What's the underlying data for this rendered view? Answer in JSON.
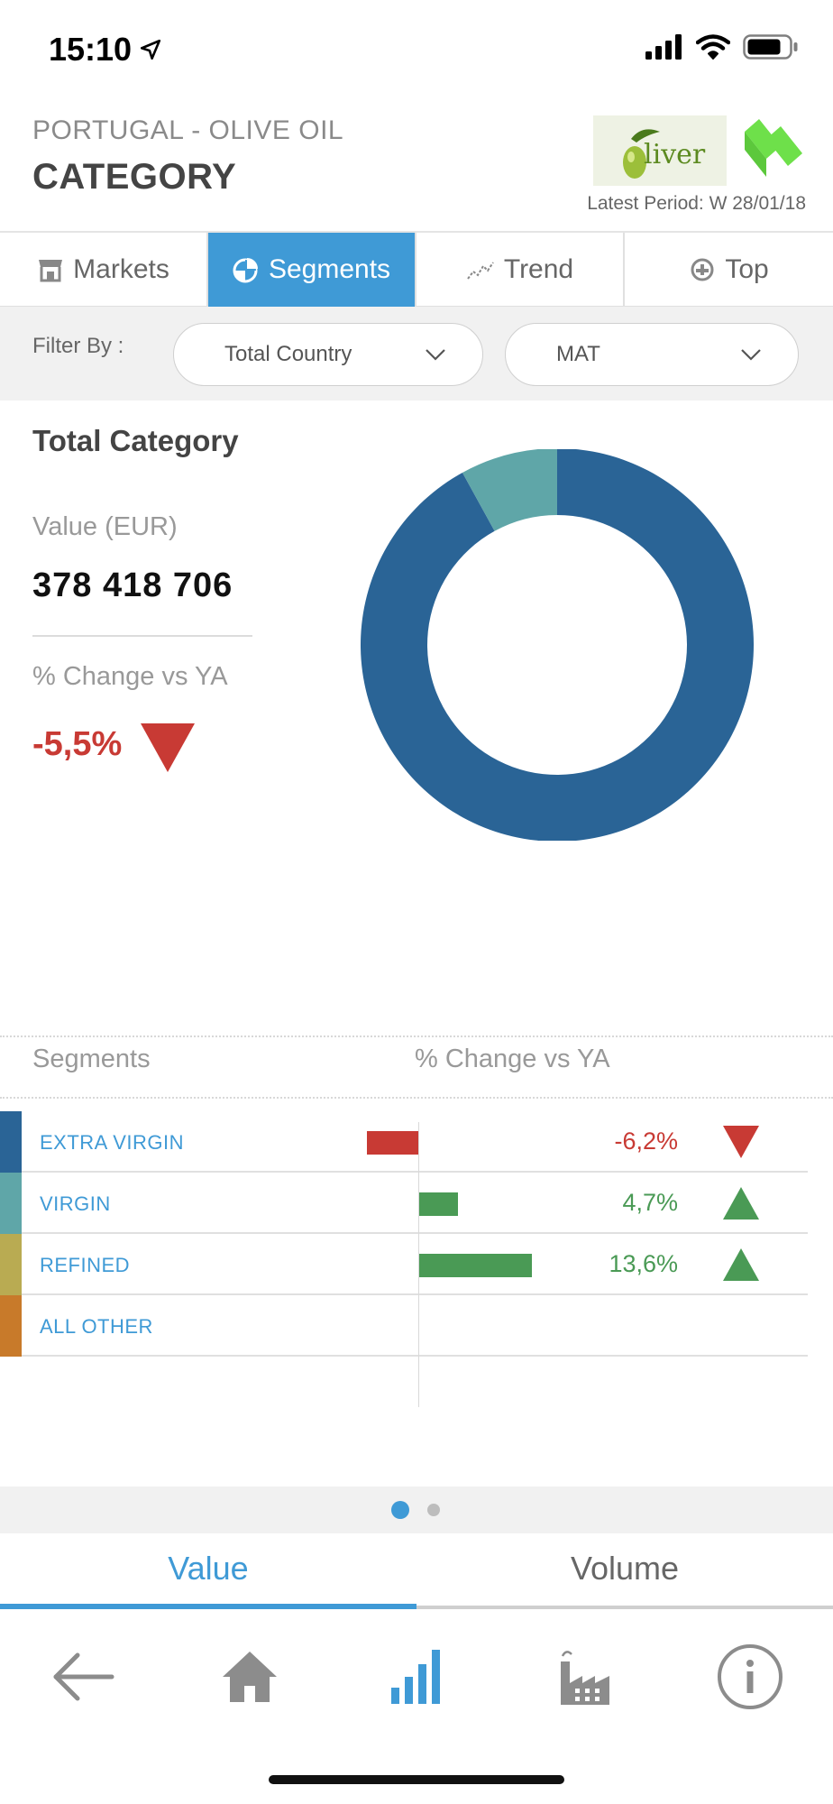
{
  "status_bar": {
    "time": "15:10"
  },
  "header": {
    "country_label": "PORTUGAL - OLIVE OIL",
    "title": "CATEGORY",
    "logo_text": "liver",
    "period_label": "Latest Period: W 28/01/18"
  },
  "tabs": [
    {
      "label": "Markets",
      "icon": "store-icon",
      "active": false
    },
    {
      "label": "Segments",
      "icon": "pie-chart-icon",
      "active": true
    },
    {
      "label": "Trend",
      "icon": "trend-icon",
      "active": false
    },
    {
      "label": "Top",
      "icon": "top-icon",
      "active": false
    }
  ],
  "filter": {
    "label": "Filter By :",
    "geography": "Total Country",
    "period": "MAT"
  },
  "summary": {
    "title": "Total Category",
    "value_label": "Value (EUR)",
    "value": "378 418 706",
    "change_label": "% Change vs YA",
    "change_value": "-5,5%"
  },
  "colors": {
    "extra_virgin": "#2a6496",
    "virgin": "#5fa6a8",
    "refined": "#b9ab52",
    "all_other": "#c87a2a",
    "negative": "#c83a34",
    "positive": "#4a9a55",
    "accent": "#3f9ad6"
  },
  "chart_data": [
    {
      "type": "pie",
      "labels": [
        "EXTRA VIRGIN",
        "VIRGIN",
        "REFINED",
        "ALL OTHER"
      ],
      "values": [
        92,
        8,
        0,
        0
      ],
      "unit": "% share of value"
    },
    {
      "type": "bar",
      "orientation": "horizontal",
      "categories": [
        "EXTRA VIRGIN",
        "VIRGIN",
        "REFINED",
        "ALL OTHER"
      ],
      "values": [
        -6.2,
        4.7,
        13.6,
        null
      ],
      "xlim": [
        -10,
        20
      ]
    }
  ],
  "segments": {
    "header_name": "Segments",
    "header_change": "% Change vs YA",
    "rows": [
      {
        "name": "EXTRA VIRGIN",
        "change": "-6,2%",
        "direction": "down"
      },
      {
        "name": "VIRGIN",
        "change": "4,7%",
        "direction": "up"
      },
      {
        "name": "REFINED",
        "change": "13,6%",
        "direction": "up"
      },
      {
        "name": "ALL OTHER",
        "change": "",
        "direction": "none"
      }
    ]
  },
  "measure_toggle": {
    "value_label": "Value",
    "volume_label": "Volume",
    "selected": "Value"
  },
  "bottom_nav": [
    {
      "icon": "back-arrow-icon"
    },
    {
      "icon": "home-icon"
    },
    {
      "icon": "bar-chart-icon",
      "active": true
    },
    {
      "icon": "factory-icon"
    },
    {
      "icon": "info-icon"
    }
  ]
}
